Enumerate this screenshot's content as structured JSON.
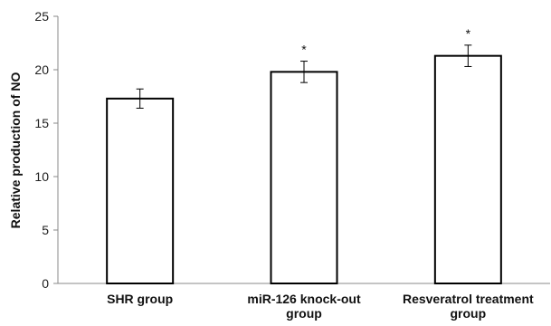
{
  "chart_data": {
    "type": "bar",
    "title": "",
    "xlabel": "",
    "ylabel": "Relative production of NO",
    "ylim": [
      0,
      25
    ],
    "yticks": [
      0,
      5,
      10,
      15,
      20,
      25
    ],
    "grid": false,
    "categories": [
      [
        "SHR group"
      ],
      [
        "miR-126 knock-out",
        "group"
      ],
      [
        "Resveratrol treatment",
        "group"
      ]
    ],
    "values": [
      17.3,
      19.8,
      21.3
    ],
    "error": [
      0.9,
      1.0,
      1.0
    ],
    "significance": [
      "",
      "*",
      "*"
    ],
    "colors": {
      "bar_fill": "#ffffff",
      "bar_stroke": "#000000",
      "axis": "#888888"
    }
  }
}
